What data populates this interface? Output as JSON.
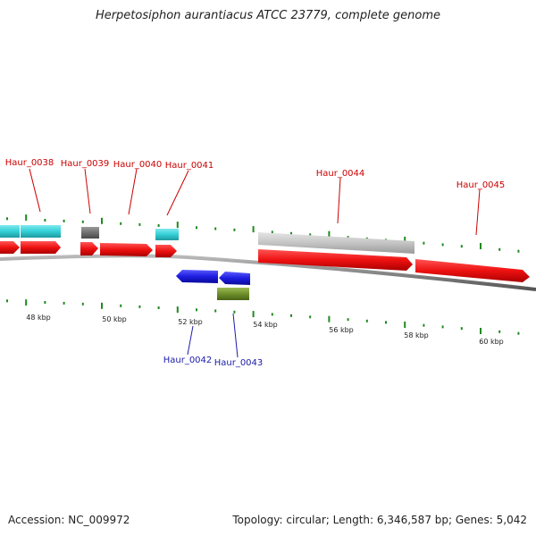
{
  "title": "Herpetosiphon aurantiacus ATCC 23779, complete genome",
  "footer": {
    "accession": "Accession: NC_009972",
    "summary": "Topology: circular; Length: 6,346,587 bp; Genes: 5,042"
  },
  "colors": {
    "forward_cds": "#ee1111",
    "reverse_cds": "#1d1de0",
    "cyan_feature": "#33cfd6",
    "gray_feature": "#c4c4c4",
    "dark_gray_feature": "#707070",
    "olive_feature": "#6e8f2a",
    "tick": "#1f8a1f",
    "label_forward": "#cc0000",
    "label_reverse": "#1a1aaa",
    "backbone": "#888888"
  },
  "scale_labels": [
    "48 kbp",
    "50 kbp",
    "52 kbp",
    "54 kbp",
    "56 kbp",
    "58 kbp",
    "60 kbp"
  ],
  "gene_labels_forward": [
    "Haur_0038",
    "Haur_0039",
    "Haur_0040",
    "Haur_0041",
    "Haur_0044",
    "Haur_0045"
  ],
  "gene_labels_reverse": [
    "Haur_0042",
    "Haur_0043"
  ]
}
